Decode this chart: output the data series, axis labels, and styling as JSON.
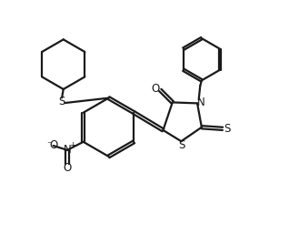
{
  "bg_color": "#ffffff",
  "line_color": "#1a1a1a",
  "line_width": 1.6,
  "fig_width": 3.29,
  "fig_height": 2.57,
  "dpi": 100,
  "xlim": [
    0,
    10
  ],
  "ylim": [
    0,
    8
  ]
}
